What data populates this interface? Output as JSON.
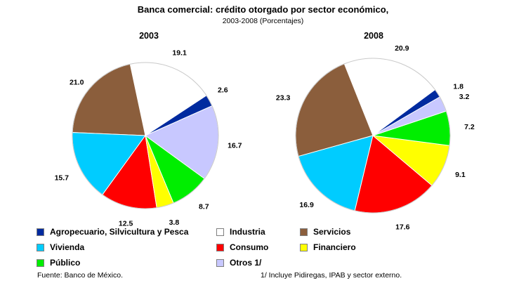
{
  "title": "Banca comercial: crédito otorgado por sector económico,",
  "subtitle": "2003-2008  (Porcentajes)",
  "footer": {
    "source": "Fuente: Banco de México.",
    "note": "1/ Incluye Pidiregas, IPAB y sector externo."
  },
  "chart_data": [
    {
      "type": "pie",
      "title": "2003",
      "slices": [
        {
          "label": "Agropecuario, Silvicultura y Pesca",
          "value": 2.6,
          "display": "2.6",
          "color": "#002a9f"
        },
        {
          "label": "Industria",
          "value": 19.1,
          "display": "19.1",
          "color": "#ffffff"
        },
        {
          "label": "Servicios",
          "value": 21.0,
          "display": "21.0",
          "color": "#8b5e3c"
        },
        {
          "label": "Vivienda",
          "value": 15.7,
          "display": "15.7",
          "color": "#00ccff"
        },
        {
          "label": "Consumo",
          "value": 12.5,
          "display": "12.5",
          "color": "#ff0000"
        },
        {
          "label": "Financiero",
          "value": 3.8,
          "display": "3.8",
          "color": "#ffff00"
        },
        {
          "label": "Público",
          "value": 8.7,
          "display": "8.7",
          "color": "#00ee00"
        },
        {
          "label": "Otros 1/",
          "value": 16.7,
          "display": "16.7",
          "color": "#c8c8ff"
        }
      ]
    },
    {
      "type": "pie",
      "title": "2008",
      "slices": [
        {
          "label": "Agropecuario, Silvicultura y Pesca",
          "value": 1.8,
          "display": "1.8",
          "color": "#002a9f"
        },
        {
          "label": "Industria",
          "value": 20.9,
          "display": "20.9",
          "color": "#ffffff"
        },
        {
          "label": "Servicios",
          "value": 23.3,
          "display": "23.3",
          "color": "#8b5e3c"
        },
        {
          "label": "Vivienda",
          "value": 16.9,
          "display": "16.9",
          "color": "#00ccff"
        },
        {
          "label": "Consumo",
          "value": 17.6,
          "display": "17.6",
          "color": "#ff0000"
        },
        {
          "label": "Financiero",
          "value": 9.1,
          "display": "9.1",
          "color": "#ffff00"
        },
        {
          "label": "Público",
          "value": 7.2,
          "display": "7.2",
          "color": "#00ee00"
        },
        {
          "label": "Otros 1/",
          "value": 3.2,
          "display": "3.2",
          "color": "#c8c8ff"
        }
      ]
    }
  ],
  "legend": [
    {
      "label": "Agropecuario, Silvicultura y Pesca",
      "color": "#002a9f"
    },
    {
      "label": "Industria",
      "color": "#ffffff"
    },
    {
      "label": "Servicios",
      "color": "#8b5e3c"
    },
    {
      "label": "Vivienda",
      "color": "#00ccff"
    },
    {
      "label": "Consumo",
      "color": "#ff0000"
    },
    {
      "label": "Financiero",
      "color": "#ffff00"
    },
    {
      "label": "Público",
      "color": "#00ee00"
    },
    {
      "label": "Otros 1/",
      "color": "#c8c8ff"
    }
  ]
}
